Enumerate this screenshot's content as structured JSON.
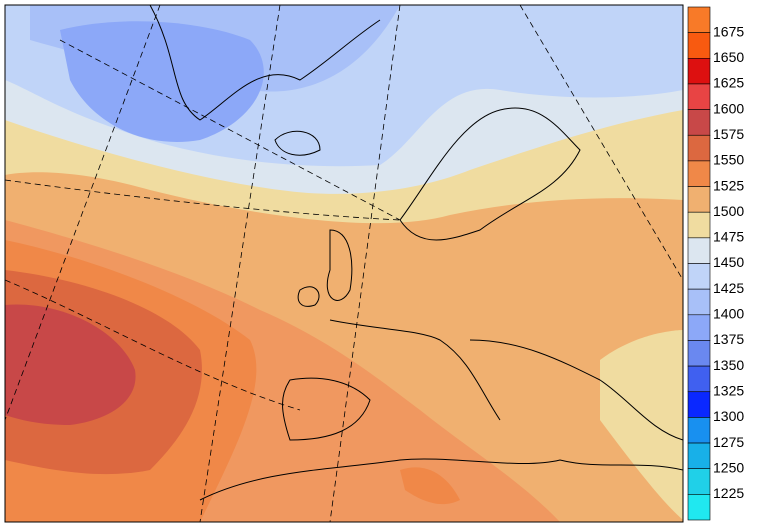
{
  "colorbar": {
    "levels": [
      1675,
      1650,
      1625,
      1600,
      1575,
      1550,
      1525,
      1500,
      1475,
      1450,
      1425,
      1400,
      1375,
      1350,
      1325,
      1300,
      1275,
      1250,
      1225
    ],
    "colors": [
      "#f87a28",
      "#f85a10",
      "#dd1010",
      "#e84444",
      "#c84848",
      "#dc6840",
      "#f08848",
      "#f0b070",
      "#f0dca0",
      "#dce6f0",
      "#c0d4f8",
      "#a8c0f8",
      "#8ca8f8",
      "#6a88f0",
      "#4060f0",
      "#0a28ff",
      "#1890f0",
      "#18b0e8",
      "#20d0e8",
      "#20e8f0"
    ]
  }
}
